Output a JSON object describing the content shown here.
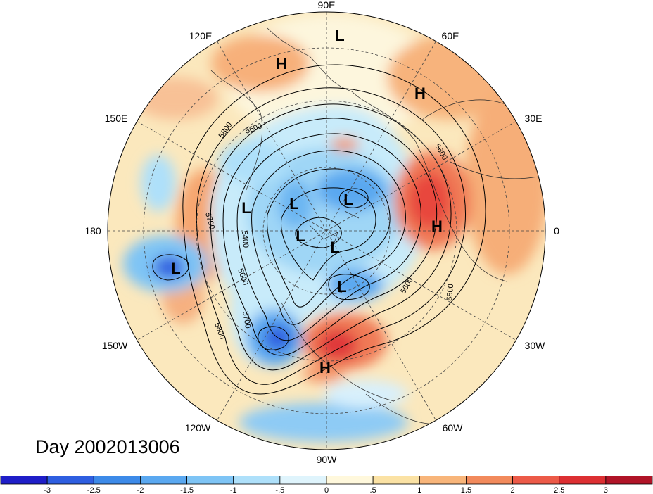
{
  "title": "Day 2002013006",
  "longitude_labels": [
    "90E",
    "60E",
    "30E",
    "0",
    "30W",
    "60W",
    "90W",
    "120W",
    "150W",
    "180",
    "150E",
    "120E"
  ],
  "pressure_centers": [
    "L",
    "H",
    "H",
    "L",
    "L",
    "L",
    "H",
    "L",
    "L",
    "L",
    "L",
    "H"
  ],
  "contour_labels": [
    "5800",
    "5600",
    "5600",
    "5700",
    "5400",
    "5600",
    "5700",
    "5800",
    "5800",
    "5600",
    "5800"
  ],
  "colorbar": {
    "ticks": [
      "-3",
      "-2.5",
      "-2",
      "-1.5",
      "-1",
      "-.5",
      "0",
      ".5",
      "1",
      "1.5",
      "2",
      "2.5",
      "3"
    ],
    "colors": [
      "#1f1ec8",
      "#2e5ee0",
      "#3d8ae8",
      "#5aa8f0",
      "#7ec4f5",
      "#aee0fa",
      "#dff4fc",
      "#fff8dc",
      "#fbe2a4",
      "#f8b57a",
      "#f28a5c",
      "#ec5a48",
      "#dc2f32",
      "#b01427"
    ]
  }
}
